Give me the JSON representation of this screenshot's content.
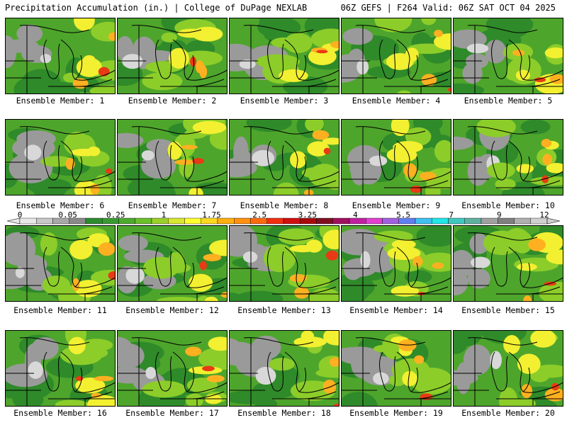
{
  "header": {
    "left_title": "Precipitation Accumulation (in.) | College of DuPage NEXLAB",
    "right_title": "06Z GEFS | F264 Valid: 06Z SAT OCT 04 2025"
  },
  "colorbar": {
    "tick_labels": [
      "0",
      "0.05",
      "0.25",
      "1",
      "1.75",
      "2.5",
      "3.25",
      "4",
      "5.5",
      "7",
      "9",
      "12"
    ],
    "colors": [
      "#e8e8e8",
      "#c8c8c8",
      "#a8a8a8",
      "#8a8a8a",
      "#2e8b2e",
      "#3a9a32",
      "#4eaa2e",
      "#6abf2a",
      "#9ad02a",
      "#d8e830",
      "#ffff30",
      "#ffd820",
      "#ffb010",
      "#ff9010",
      "#ff6a10",
      "#f03010",
      "#d01010",
      "#a80a0a",
      "#801020",
      "#a01060",
      "#c020a0",
      "#e040d0",
      "#a060e0",
      "#6080f0",
      "#40c0f0",
      "#20e8e8",
      "#40c8c0",
      "#60b0a0",
      "#a0a0a0",
      "#808080",
      "#b0b0b0",
      "#d0d0d0"
    ]
  },
  "members": [
    {
      "caption": "Ensemble Member: 1"
    },
    {
      "caption": "Ensemble Member: 2"
    },
    {
      "caption": "Ensemble Member: 3"
    },
    {
      "caption": "Ensemble Member: 4"
    },
    {
      "caption": "Ensemble Member: 5"
    },
    {
      "caption": "Ensemble Member: 6"
    },
    {
      "caption": "Ensemble Member: 7"
    },
    {
      "caption": "Ensemble Member: 8"
    },
    {
      "caption": "Ensemble Member: 9"
    },
    {
      "caption": "Ensemble Member: 10"
    },
    {
      "caption": "Ensemble Member: 11"
    },
    {
      "caption": "Ensemble Member: 12"
    },
    {
      "caption": "Ensemble Member: 13"
    },
    {
      "caption": "Ensemble Member: 14"
    },
    {
      "caption": "Ensemble Member: 15"
    },
    {
      "caption": "Ensemble Member: 16"
    },
    {
      "caption": "Ensemble Member: 17"
    },
    {
      "caption": "Ensemble Member: 18"
    },
    {
      "caption": "Ensemble Member: 19"
    },
    {
      "caption": "Ensemble Member: 20"
    }
  ],
  "map_colors": {
    "base_green": "#4ea52c",
    "dark_green": "#2f8a2a",
    "light_green": "#8ccd2a",
    "yellow": "#f2f030",
    "orange": "#ffb020",
    "red": "#e83a14",
    "gray": "#9a9a9a",
    "light_gray": "#d8d8d8",
    "outline": "#000000"
  }
}
